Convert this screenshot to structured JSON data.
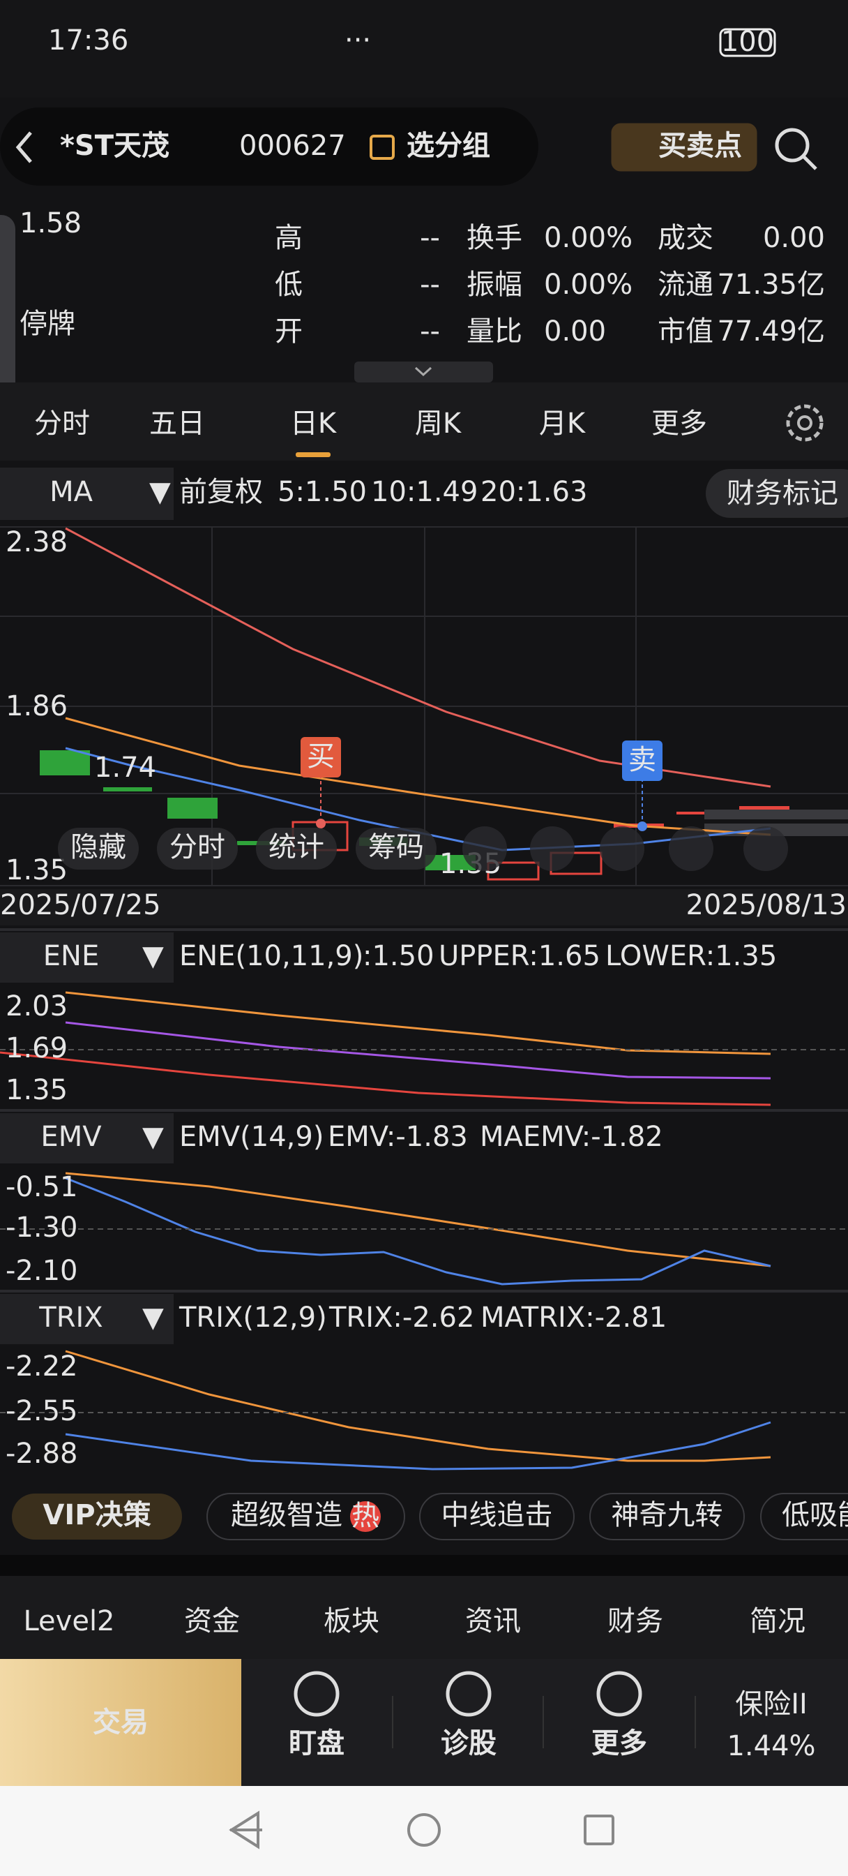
{
  "status": {
    "time": "17:36",
    "more": "···",
    "battery": "100"
  },
  "header": {
    "name": "*ST天茂",
    "code": "000627",
    "group": "选分组",
    "signal": "买卖点"
  },
  "quote": {
    "price": "1.58",
    "state": "停牌",
    "fields": [
      [
        "高",
        "--"
      ],
      [
        "低",
        "--"
      ],
      [
        "开",
        "--"
      ],
      [
        "换手",
        "0.00%"
      ],
      [
        "振幅",
        "0.00%"
      ],
      [
        "量比",
        "0.00"
      ],
      [
        "成交",
        "0.00"
      ],
      [
        "流通",
        "71.35亿"
      ],
      [
        "市值",
        "77.49亿"
      ]
    ]
  },
  "tabs": [
    "分时",
    "五日",
    "日K",
    "周K",
    "月K",
    "更多"
  ],
  "main": {
    "indicator": "MA",
    "adjust": "前复权",
    "values": [
      "5:1.50",
      "10:1.49",
      "20:1.63"
    ],
    "button": "财务标记",
    "yaxis": [
      "2.38",
      "1.86",
      "1.35"
    ],
    "high_label": "1.74",
    "low_label": "1.35",
    "buy": "买",
    "sell": "卖",
    "dates": [
      "2025/07/25",
      "2025/08/13"
    ],
    "tools": [
      "隐藏",
      "分时",
      "统计",
      "筹码"
    ]
  },
  "panels": [
    {
      "name": "ENE",
      "params": "ENE(10,11,9)",
      "values": [
        ":1.50",
        "UPPER:1.65",
        "LOWER:1.35"
      ],
      "yaxis": [
        "2.03",
        "1.69",
        "1.35"
      ]
    },
    {
      "name": "EMV",
      "params": "EMV(14,9)",
      "values": [
        "EMV:-1.83",
        "MAEMV:-1.82"
      ],
      "yaxis": [
        "-0.51",
        "-1.30",
        "-2.10"
      ]
    },
    {
      "name": "TRIX",
      "params": "TRIX(12,9)",
      "values": [
        "TRIX:-2.62",
        "MATRIX:-2.81"
      ],
      "yaxis": [
        "-2.22",
        "-2.55",
        "-2.88"
      ]
    }
  ],
  "chips": {
    "vip": "VIP决策",
    "items": [
      "超级智造",
      "中线追击",
      "神奇九转",
      "低吸能"
    ],
    "hot": "热"
  },
  "info_tabs": [
    "Level2",
    "资金",
    "板块",
    "资讯",
    "财务",
    "简况"
  ],
  "bottom": {
    "trade": "交易",
    "items": [
      "盯盘",
      "诊股",
      "更多"
    ],
    "insurance": "保险II",
    "insurance_rate": "1.44%"
  }
}
